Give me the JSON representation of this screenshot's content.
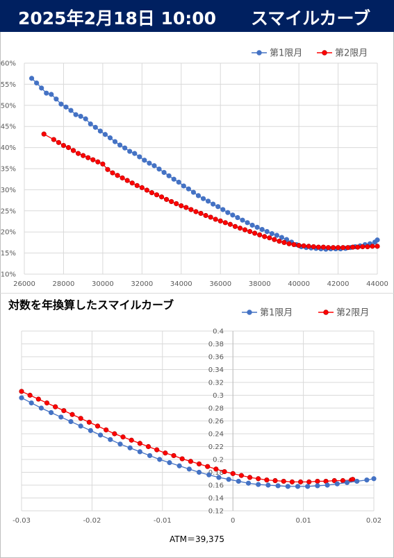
{
  "header": {
    "date_label": "2025年2月18日 10:00",
    "title": "スマイルカーブ"
  },
  "subtitle": "対数を年換算したスマイルカーブ",
  "atm_label": "ATM＝39,375",
  "colors": {
    "series1": "#4472c4",
    "series2": "#ff0000",
    "series2_stroke": "#c00000",
    "header_bg": "#002060"
  },
  "chart_data": [
    {
      "type": "line",
      "xlim": [
        26000,
        44000
      ],
      "ylim": [
        0.1,
        0.6
      ],
      "x_ticks": [
        "26000",
        "28000",
        "30000",
        "32000",
        "34000",
        "36000",
        "38000",
        "40000",
        "42000",
        "44000"
      ],
      "y_ticks": [
        "10%",
        "15%",
        "20%",
        "25%",
        "30%",
        "35%",
        "40%",
        "45%",
        "50%",
        "55%",
        "60%"
      ],
      "legend": {
        "position": "top-right"
      },
      "series": [
        {
          "name": "第1限月",
          "points": [
            [
              26375,
              0.564
            ],
            [
              26625,
              0.553
            ],
            [
              26875,
              0.541
            ],
            [
              27125,
              0.529
            ],
            [
              27375,
              0.526
            ],
            [
              27625,
              0.515
            ],
            [
              27875,
              0.503
            ],
            [
              28125,
              0.496
            ],
            [
              28375,
              0.488
            ],
            [
              28625,
              0.478
            ],
            [
              28875,
              0.474
            ],
            [
              29125,
              0.468
            ],
            [
              29375,
              0.456
            ],
            [
              29625,
              0.448
            ],
            [
              29875,
              0.439
            ],
            [
              30125,
              0.431
            ],
            [
              30375,
              0.423
            ],
            [
              30625,
              0.414
            ],
            [
              30875,
              0.406
            ],
            [
              31125,
              0.399
            ],
            [
              31375,
              0.391
            ],
            [
              31625,
              0.386
            ],
            [
              31875,
              0.378
            ],
            [
              32125,
              0.37
            ],
            [
              32375,
              0.363
            ],
            [
              32625,
              0.357
            ],
            [
              32875,
              0.349
            ],
            [
              33125,
              0.341
            ],
            [
              33375,
              0.333
            ],
            [
              33625,
              0.325
            ],
            [
              33875,
              0.318
            ],
            [
              34125,
              0.309
            ],
            [
              34375,
              0.302
            ],
            [
              34625,
              0.294
            ],
            [
              34875,
              0.286
            ],
            [
              35125,
              0.279
            ],
            [
              35375,
              0.273
            ],
            [
              35625,
              0.266
            ],
            [
              35875,
              0.26
            ],
            [
              36125,
              0.253
            ],
            [
              36375,
              0.246
            ],
            [
              36625,
              0.24
            ],
            [
              36875,
              0.234
            ],
            [
              37125,
              0.228
            ],
            [
              37375,
              0.222
            ],
            [
              37625,
              0.216
            ],
            [
              37875,
              0.211
            ],
            [
              38125,
              0.206
            ],
            [
              38375,
              0.201
            ],
            [
              38625,
              0.196
            ],
            [
              38875,
              0.192
            ],
            [
              39125,
              0.187
            ],
            [
              39375,
              0.182
            ],
            [
              39625,
              0.176
            ],
            [
              39875,
              0.17
            ],
            [
              40125,
              0.165
            ],
            [
              40375,
              0.163
            ],
            [
              40625,
              0.162
            ],
            [
              40875,
              0.161
            ],
            [
              41125,
              0.16
            ],
            [
              41375,
              0.159
            ],
            [
              41625,
              0.16
            ],
            [
              41875,
              0.16
            ],
            [
              42125,
              0.16
            ],
            [
              42375,
              0.161
            ],
            [
              42625,
              0.163
            ],
            [
              42875,
              0.165
            ],
            [
              43125,
              0.167
            ],
            [
              43375,
              0.17
            ],
            [
              43625,
              0.172
            ],
            [
              43875,
              0.176
            ],
            [
              44000,
              0.181
            ]
          ]
        },
        {
          "name": "第2限月",
          "points": [
            [
              27000,
              0.432
            ],
            [
              27500,
              0.419
            ],
            [
              27750,
              0.412
            ],
            [
              28000,
              0.405
            ],
            [
              28250,
              0.4
            ],
            [
              28500,
              0.393
            ],
            [
              28750,
              0.386
            ],
            [
              29000,
              0.381
            ],
            [
              29250,
              0.376
            ],
            [
              29500,
              0.371
            ],
            [
              29750,
              0.366
            ],
            [
              30000,
              0.361
            ],
            [
              30250,
              0.348
            ],
            [
              30500,
              0.34
            ],
            [
              30750,
              0.334
            ],
            [
              31000,
              0.328
            ],
            [
              31250,
              0.322
            ],
            [
              31500,
              0.316
            ],
            [
              31750,
              0.31
            ],
            [
              32000,
              0.305
            ],
            [
              32250,
              0.299
            ],
            [
              32500,
              0.293
            ],
            [
              32750,
              0.288
            ],
            [
              33000,
              0.283
            ],
            [
              33250,
              0.277
            ],
            [
              33500,
              0.272
            ],
            [
              33750,
              0.267
            ],
            [
              34000,
              0.262
            ],
            [
              34250,
              0.258
            ],
            [
              34500,
              0.253
            ],
            [
              34750,
              0.248
            ],
            [
              35000,
              0.244
            ],
            [
              35250,
              0.239
            ],
            [
              35500,
              0.235
            ],
            [
              35750,
              0.23
            ],
            [
              36000,
              0.226
            ],
            [
              36250,
              0.222
            ],
            [
              36500,
              0.218
            ],
            [
              36750,
              0.213
            ],
            [
              37000,
              0.209
            ],
            [
              37250,
              0.205
            ],
            [
              37500,
              0.201
            ],
            [
              37750,
              0.197
            ],
            [
              38000,
              0.193
            ],
            [
              38250,
              0.189
            ],
            [
              38500,
              0.186
            ],
            [
              38750,
              0.182
            ],
            [
              39000,
              0.178
            ],
            [
              39250,
              0.175
            ],
            [
              39500,
              0.172
            ],
            [
              39750,
              0.17
            ],
            [
              40000,
              0.168
            ],
            [
              40250,
              0.167
            ],
            [
              40500,
              0.166
            ],
            [
              40750,
              0.165
            ],
            [
              41000,
              0.164
            ],
            [
              41250,
              0.164
            ],
            [
              41500,
              0.163
            ],
            [
              41750,
              0.163
            ],
            [
              42000,
              0.163
            ],
            [
              42250,
              0.163
            ],
            [
              42500,
              0.163
            ],
            [
              42750,
              0.164
            ],
            [
              43000,
              0.164
            ],
            [
              43250,
              0.165
            ],
            [
              43500,
              0.165
            ],
            [
              43750,
              0.166
            ],
            [
              44000,
              0.166
            ]
          ]
        }
      ]
    },
    {
      "type": "line",
      "title": "対数を年換算したスマイルカーブ",
      "xlim": [
        -0.03,
        0.02
      ],
      "ylim": [
        0.12,
        0.4
      ],
      "x_ticks": [
        "-0.03",
        "-0.02",
        "-0.01",
        "0",
        "0.01",
        "0.02"
      ],
      "y_ticks": [
        "0.12",
        "0.14",
        "0.16",
        "0.18",
        "0.2",
        "0.22",
        "0.24",
        "0.26",
        "0.28",
        "0.3",
        "0.32",
        "0.34",
        "0.36",
        "0.38",
        "0.4"
      ],
      "legend": {
        "position": "top-right"
      },
      "series": [
        {
          "name": "第1限月",
          "points": [
            [
              -0.03,
              0.296
            ],
            [
              -0.0286,
              0.288
            ],
            [
              -0.0272,
              0.28
            ],
            [
              -0.0258,
              0.273
            ],
            [
              -0.0244,
              0.266
            ],
            [
              -0.023,
              0.259
            ],
            [
              -0.0216,
              0.252
            ],
            [
              -0.0202,
              0.245
            ],
            [
              -0.0188,
              0.238
            ],
            [
              -0.0174,
              0.231
            ],
            [
              -0.016,
              0.224
            ],
            [
              -0.0146,
              0.218
            ],
            [
              -0.0132,
              0.212
            ],
            [
              -0.0118,
              0.206
            ],
            [
              -0.0104,
              0.2
            ],
            [
              -0.009,
              0.195
            ],
            [
              -0.0076,
              0.19
            ],
            [
              -0.0062,
              0.185
            ],
            [
              -0.0048,
              0.18
            ],
            [
              -0.0034,
              0.176
            ],
            [
              -0.002,
              0.172
            ],
            [
              -0.0006,
              0.169
            ],
            [
              0.0008,
              0.166
            ],
            [
              0.0022,
              0.163
            ],
            [
              0.0036,
              0.161
            ],
            [
              0.005,
              0.16
            ],
            [
              0.0064,
              0.159
            ],
            [
              0.0078,
              0.158
            ],
            [
              0.0092,
              0.158
            ],
            [
              0.0106,
              0.158
            ],
            [
              0.012,
              0.159
            ],
            [
              0.0134,
              0.16
            ],
            [
              0.0148,
              0.162
            ],
            [
              0.0162,
              0.164
            ],
            [
              0.0176,
              0.166
            ],
            [
              0.019,
              0.168
            ],
            [
              0.02,
              0.17
            ]
          ]
        },
        {
          "name": "第2限月",
          "points": [
            [
              -0.03,
              0.306
            ],
            [
              -0.0288,
              0.3
            ],
            [
              -0.0276,
              0.294
            ],
            [
              -0.0264,
              0.288
            ],
            [
              -0.0252,
              0.282
            ],
            [
              -0.024,
              0.276
            ],
            [
              -0.0228,
              0.27
            ],
            [
              -0.0216,
              0.264
            ],
            [
              -0.0204,
              0.258
            ],
            [
              -0.0192,
              0.252
            ],
            [
              -0.018,
              0.246
            ],
            [
              -0.0168,
              0.24
            ],
            [
              -0.0156,
              0.235
            ],
            [
              -0.0144,
              0.23
            ],
            [
              -0.0132,
              0.225
            ],
            [
              -0.012,
              0.22
            ],
            [
              -0.0108,
              0.215
            ],
            [
              -0.0096,
              0.21
            ],
            [
              -0.0084,
              0.206
            ],
            [
              -0.0072,
              0.201
            ],
            [
              -0.006,
              0.197
            ],
            [
              -0.0048,
              0.193
            ],
            [
              -0.0036,
              0.189
            ],
            [
              -0.0024,
              0.185
            ],
            [
              -0.0012,
              0.181
            ],
            [
              0.0,
              0.178
            ],
            [
              0.0012,
              0.175
            ],
            [
              0.0024,
              0.172
            ],
            [
              0.0036,
              0.17
            ],
            [
              0.0048,
              0.168
            ],
            [
              0.006,
              0.167
            ],
            [
              0.0072,
              0.166
            ],
            [
              0.0084,
              0.165
            ],
            [
              0.0096,
              0.165
            ],
            [
              0.0108,
              0.165
            ],
            [
              0.012,
              0.166
            ],
            [
              0.0132,
              0.166
            ],
            [
              0.0144,
              0.167
            ],
            [
              0.0156,
              0.167
            ],
            [
              0.0168,
              0.168
            ],
            [
              0.017,
              0.169
            ]
          ]
        }
      ]
    }
  ]
}
